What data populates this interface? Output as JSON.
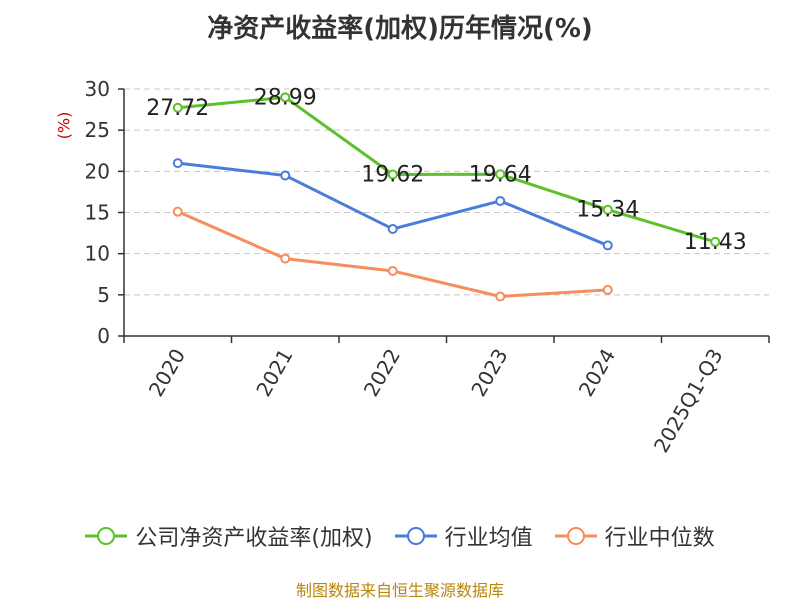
{
  "chart_data": {
    "type": "line",
    "title": "净资产收益率(加权)历年情况(%)",
    "ylabel": "(%)",
    "categories": [
      "2020",
      "2021",
      "2022",
      "2023",
      "2024",
      "2025Q1-Q3"
    ],
    "ylim": [
      0,
      30
    ],
    "yticks": [
      0,
      5,
      10,
      15,
      20,
      25,
      30
    ],
    "grid": true,
    "legend_position": "bottom",
    "series": [
      {
        "name": "公司净资产收益率(加权)",
        "color": "#5cc12b",
        "values": [
          27.72,
          28.99,
          19.62,
          19.64,
          15.34,
          11.43
        ],
        "labels": [
          "27.72",
          "28.99",
          "19.62",
          "19.64",
          "15.34",
          "11.43"
        ]
      },
      {
        "name": "行业均值",
        "color": "#4a7ddb",
        "values": [
          21.0,
          19.5,
          13.0,
          16.4,
          11.0,
          null
        ]
      },
      {
        "name": "行业中位数",
        "color": "#f58d5c",
        "values": [
          15.1,
          9.4,
          7.9,
          4.8,
          5.6,
          null
        ]
      }
    ],
    "source": "制图数据来自恒生聚源数据库"
  }
}
